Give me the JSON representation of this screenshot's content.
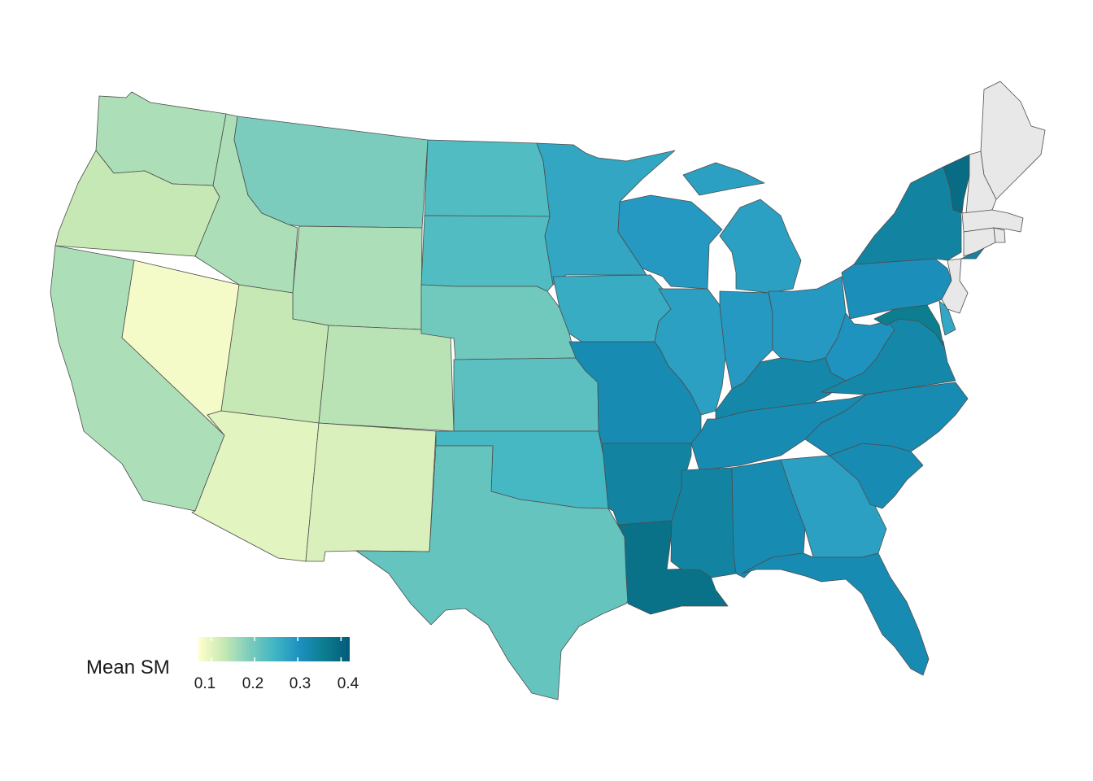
{
  "legend": {
    "title": "Mean SM",
    "ticks": [
      "0.1",
      "0.2",
      "0.3",
      "0.4"
    ],
    "tick_values": [
      0.1,
      0.2,
      0.3,
      0.4
    ],
    "range": [
      0.07,
      0.42
    ],
    "colors": [
      "#ffffcc",
      "#c7e9b4",
      "#7fcdbb",
      "#41b6c4",
      "#1d91c0",
      "#0c7d8e",
      "#045a7a"
    ]
  },
  "colors": {
    "missing": "#e8e8e8",
    "border": "#4d4d4d",
    "background": "#ffffff"
  },
  "chart_data": {
    "type": "choropleth",
    "variable": "Mean SM",
    "states": [
      {
        "id": "WA",
        "value": 0.15
      },
      {
        "id": "OR",
        "value": 0.13
      },
      {
        "id": "CA",
        "value": 0.15
      },
      {
        "id": "ID",
        "value": 0.15
      },
      {
        "id": "NV",
        "value": 0.08
      },
      {
        "id": "MT",
        "value": 0.19
      },
      {
        "id": "WY",
        "value": 0.15
      },
      {
        "id": "UT",
        "value": 0.13
      },
      {
        "id": "AZ",
        "value": 0.1
      },
      {
        "id": "CO",
        "value": 0.14
      },
      {
        "id": "NM",
        "value": 0.11
      },
      {
        "id": "ND",
        "value": 0.23
      },
      {
        "id": "SD",
        "value": 0.23
      },
      {
        "id": "NE",
        "value": 0.2
      },
      {
        "id": "KS",
        "value": 0.22
      },
      {
        "id": "OK",
        "value": 0.24
      },
      {
        "id": "TX",
        "value": 0.21
      },
      {
        "id": "MN",
        "value": 0.27
      },
      {
        "id": "IA",
        "value": 0.26
      },
      {
        "id": "MO",
        "value": 0.32
      },
      {
        "id": "AR",
        "value": 0.34
      },
      {
        "id": "LA",
        "value": 0.38
      },
      {
        "id": "WI",
        "value": 0.29
      },
      {
        "id": "IL",
        "value": 0.28
      },
      {
        "id": "MI",
        "value": 0.28
      },
      {
        "id": "IN",
        "value": 0.29
      },
      {
        "id": "OH",
        "value": 0.29
      },
      {
        "id": "KY",
        "value": 0.33
      },
      {
        "id": "TN",
        "value": 0.32
      },
      {
        "id": "MS",
        "value": 0.34
      },
      {
        "id": "AL",
        "value": 0.32
      },
      {
        "id": "GA",
        "value": 0.28
      },
      {
        "id": "FL",
        "value": 0.32
      },
      {
        "id": "SC",
        "value": 0.32
      },
      {
        "id": "NC",
        "value": 0.32
      },
      {
        "id": "VA",
        "value": 0.33
      },
      {
        "id": "WV",
        "value": 0.3
      },
      {
        "id": "PA",
        "value": 0.31
      },
      {
        "id": "NY",
        "value": 0.34
      },
      {
        "id": "VT",
        "value": 0.39
      },
      {
        "id": "MD",
        "value": 0.36
      },
      {
        "id": "DE",
        "value": 0.27
      },
      {
        "id": "NJ",
        "value": null
      },
      {
        "id": "NH",
        "value": null
      },
      {
        "id": "ME",
        "value": null
      },
      {
        "id": "MA",
        "value": null
      },
      {
        "id": "CT",
        "value": null
      },
      {
        "id": "RI",
        "value": null
      }
    ]
  }
}
